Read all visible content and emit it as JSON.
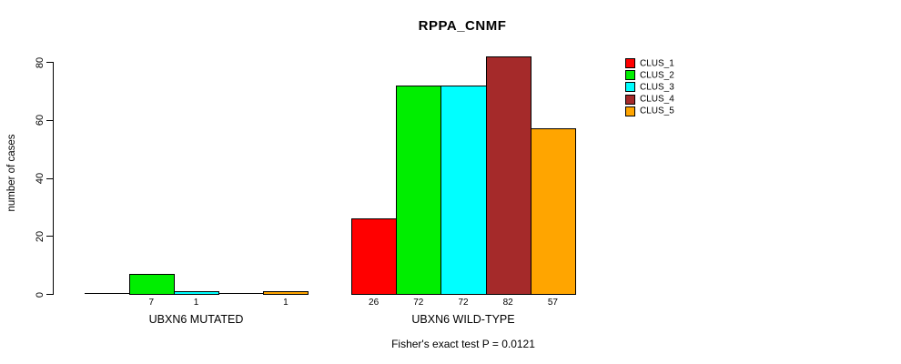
{
  "chart": {
    "title": "RPPA_CNMF",
    "ylabel": "number of cases",
    "annotation": "Fisher's exact test P = 0.0121"
  },
  "chart_data": {
    "type": "bar",
    "title": "RPPA_CNMF",
    "xlabel": "",
    "ylabel": "number of cases",
    "ylim": [
      0,
      80
    ],
    "yticks": [
      0,
      20,
      40,
      60,
      80
    ],
    "grid": false,
    "legend_position": "right",
    "bar_outline_color": "#000000",
    "background_color": "#ffffff",
    "categories": [
      "UBXN6 MUTATED",
      "UBXN6 WILD-TYPE"
    ],
    "series": [
      {
        "name": "CLUS_1",
        "color": "#FF0000",
        "values": [
          0,
          26
        ]
      },
      {
        "name": "CLUS_2",
        "color": "#00EE00",
        "values": [
          7,
          72
        ]
      },
      {
        "name": "CLUS_3",
        "color": "#00FFFF",
        "values": [
          1,
          72
        ]
      },
      {
        "name": "CLUS_4",
        "color": "#A52A2A",
        "values": [
          0,
          82
        ]
      },
      {
        "name": "CLUS_5",
        "color": "#FFA500",
        "values": [
          1,
          57
        ]
      }
    ],
    "annotation": "Fisher's exact test P = 0.0121",
    "value_label_rule": "labels shown under each bar only when value > 0"
  }
}
